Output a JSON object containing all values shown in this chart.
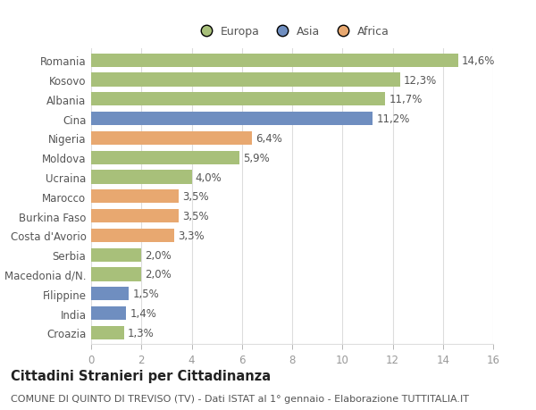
{
  "categories": [
    "Romania",
    "Kosovo",
    "Albania",
    "Cina",
    "Nigeria",
    "Moldova",
    "Ucraina",
    "Marocco",
    "Burkina Faso",
    "Costa d'Avorio",
    "Serbia",
    "Macedonia d/N.",
    "Filippine",
    "India",
    "Croazia"
  ],
  "values": [
    14.6,
    12.3,
    11.7,
    11.2,
    6.4,
    5.9,
    4.0,
    3.5,
    3.5,
    3.3,
    2.0,
    2.0,
    1.5,
    1.4,
    1.3
  ],
  "labels": [
    "14,6%",
    "12,3%",
    "11,7%",
    "11,2%",
    "6,4%",
    "5,9%",
    "4,0%",
    "3,5%",
    "3,5%",
    "3,3%",
    "2,0%",
    "2,0%",
    "1,5%",
    "1,4%",
    "1,3%"
  ],
  "colors": [
    "#a8c07a",
    "#a8c07a",
    "#a8c07a",
    "#6f8ec0",
    "#e8a870",
    "#a8c07a",
    "#a8c07a",
    "#e8a870",
    "#e8a870",
    "#e8a870",
    "#a8c07a",
    "#a8c07a",
    "#6f8ec0",
    "#6f8ec0",
    "#a8c07a"
  ],
  "legend_labels": [
    "Europa",
    "Asia",
    "Africa"
  ],
  "legend_colors": [
    "#a8c07a",
    "#6f8ec0",
    "#e8a870"
  ],
  "xlim": [
    0,
    16
  ],
  "xticks": [
    0,
    2,
    4,
    6,
    8,
    10,
    12,
    14,
    16
  ],
  "title": "Cittadini Stranieri per Cittadinanza",
  "subtitle": "COMUNE DI QUINTO DI TREVISO (TV) - Dati ISTAT al 1° gennaio - Elaborazione TUTTITALIA.IT",
  "bg_color": "#ffffff",
  "plot_bg_color": "#ffffff",
  "grid_color": "#dddddd",
  "bar_height": 0.7,
  "label_fontsize": 8.5,
  "tick_fontsize": 8.5,
  "title_fontsize": 10.5,
  "subtitle_fontsize": 8.0
}
